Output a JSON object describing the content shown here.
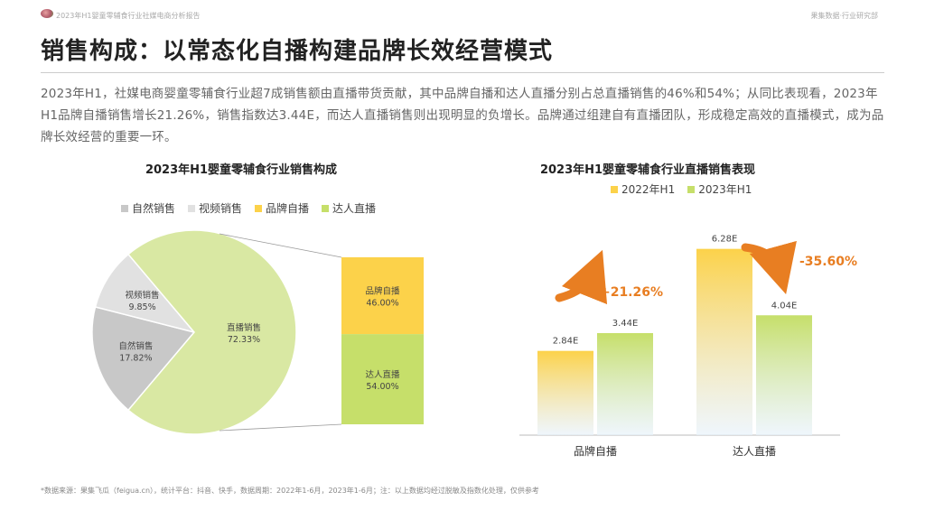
{
  "header": {
    "report_name": "2023年H1婴童零辅食行业社媒电商分析报告",
    "org_name": "果集数据·行业研究部"
  },
  "page_title": "销售构成：以常态化自播构建品牌长效经营模式",
  "summary": "2023年H1，社媒电商婴童零辅食行业超7成销售额由直播带货贡献，其中品牌自播和达人直播分别占总直播销售的46%和54%；从同比表现看，2023年H1品牌自播销售增长21.26%，销售指数达3.44E，而达人直播销售则出现明显的负增长。品牌通过组建自有直播团队，形成稳定高效的直播模式，成为品牌长效经营的重要一环。",
  "footnote": "*数据来源：果集飞瓜（feigua.cn），统计平台：抖音、快手，数据周期：2022年1-6月，2023年1-6月；注：以上数据均经过脱敏及指数化处理，仅供参考",
  "chart_data": [
    {
      "type": "pie",
      "title": "2023年H1婴童零辅食行业销售构成",
      "legend_position": "top",
      "slices": [
        {
          "name": "自然销售",
          "label": "自然销售",
          "value": 17.82,
          "value_label": "17.82%",
          "color": "#c8c8c8"
        },
        {
          "name": "视频销售",
          "label": "视频销售",
          "value": 9.85,
          "value_label": "9.85%",
          "color": "#e1e1e1"
        },
        {
          "name": "直播销售",
          "label": "直播销售",
          "value": 72.33,
          "value_label": "72.33%",
          "color": "#d9e8a3"
        }
      ],
      "legend": [
        {
          "name": "自然销售",
          "color": "#c8c8c8"
        },
        {
          "name": "视频销售",
          "color": "#e1e1e1"
        },
        {
          "name": "品牌自播",
          "color": "#fcd24a"
        },
        {
          "name": "达人直播",
          "color": "#c6df6a"
        }
      ],
      "breakdown": {
        "parent": "直播销售",
        "segments": [
          {
            "name": "品牌自播",
            "label": "品牌自播",
            "value": 46.0,
            "value_label": "46.00%",
            "color": "#fcd24a"
          },
          {
            "name": "达人直播",
            "label": "达人直播",
            "value": 54.0,
            "value_label": "54.00%",
            "color": "#c6df6a"
          }
        ]
      }
    },
    {
      "type": "bar",
      "title": "2023年H1婴童零辅食行业直播销售表现",
      "legend_position": "top",
      "categories": [
        "品牌自播",
        "达人直播"
      ],
      "series": [
        {
          "name": "2022年H1",
          "values": [
            2.84,
            6.28
          ],
          "labels": [
            "2.84E",
            "6.28E"
          ],
          "color": "#fcd24a"
        },
        {
          "name": "2023年H1",
          "values": [
            3.44,
            4.04
          ],
          "labels": [
            "3.44E",
            "4.04E"
          ],
          "color": "#c6df6a"
        }
      ],
      "ylim": [
        0,
        7
      ],
      "annotations": [
        {
          "category": "品牌自播",
          "text": "+21.26%",
          "color": "#e87e22"
        },
        {
          "category": "达人直播",
          "text": "-35.60%",
          "color": "#e87e22"
        }
      ]
    }
  ]
}
